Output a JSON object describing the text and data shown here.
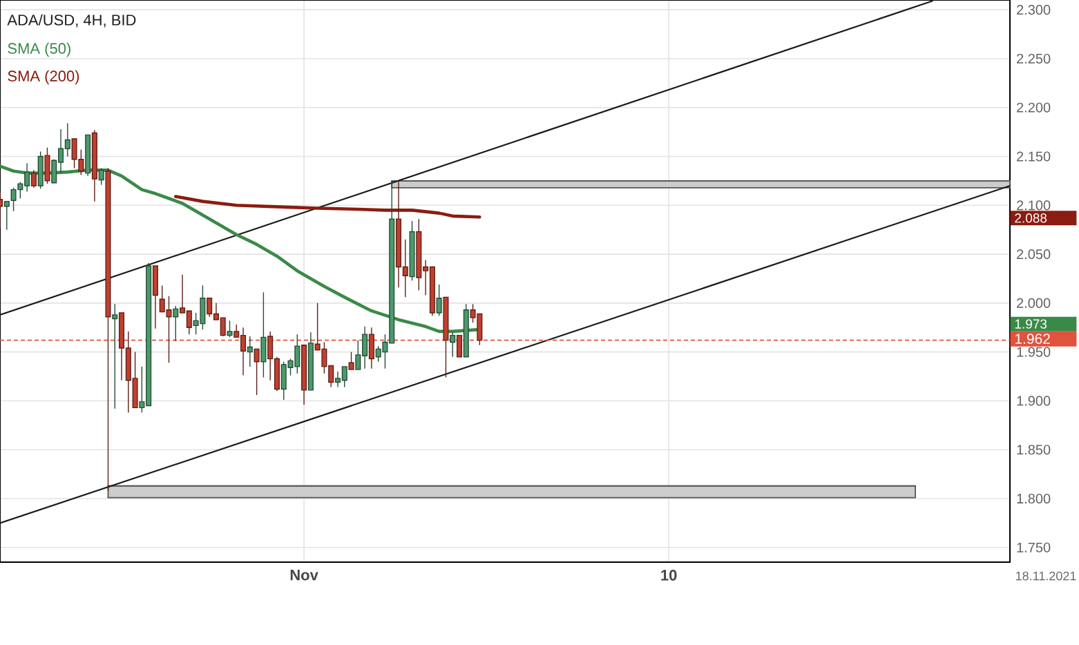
{
  "chart_data": {
    "type": "candlestick",
    "title": "ADA/USD, 4H, BID",
    "x": [
      "2021-10-24T12:00",
      "2021-10-24T16:00",
      "2021-10-24T20:00",
      "2021-10-25T00:00",
      "2021-10-25T04:00",
      "2021-10-25T08:00",
      "2021-10-25T12:00",
      "2021-10-25T16:00",
      "2021-10-25T20:00",
      "2021-10-26T00:00",
      "2021-10-26T04:00",
      "2021-10-26T08:00",
      "2021-10-26T12:00",
      "2021-10-26T16:00",
      "2021-10-26T20:00",
      "2021-10-27T00:00",
      "2021-10-27T04:00",
      "2021-10-27T08:00",
      "2021-10-27T12:00",
      "2021-10-27T16:00",
      "2021-10-27T20:00",
      "2021-10-28T00:00",
      "2021-10-28T04:00",
      "2021-10-28T08:00",
      "2021-10-28T12:00",
      "2021-10-28T16:00",
      "2021-10-28T20:00",
      "2021-10-29T00:00",
      "2021-10-29T04:00",
      "2021-10-29T08:00",
      "2021-10-29T12:00",
      "2021-10-29T16:00",
      "2021-10-29T20:00",
      "2021-10-30T00:00",
      "2021-10-30T04:00",
      "2021-10-30T08:00",
      "2021-10-30T12:00",
      "2021-10-30T16:00",
      "2021-10-30T20:00",
      "2021-10-31T00:00",
      "2021-10-31T04:00",
      "2021-10-31T08:00",
      "2021-10-31T12:00",
      "2021-10-31T16:00",
      "2021-10-31T20:00",
      "2021-11-01T00:00",
      "2021-11-01T04:00",
      "2021-11-01T08:00",
      "2021-11-01T12:00",
      "2021-11-01T16:00",
      "2021-11-01T20:00",
      "2021-11-02T00:00",
      "2021-11-02T04:00",
      "2021-11-02T08:00",
      "2021-11-02T12:00",
      "2021-11-02T16:00",
      "2021-11-02T20:00",
      "2021-11-03T00:00",
      "2021-11-03T04:00",
      "2021-11-03T08:00",
      "2021-11-03T12:00",
      "2021-11-03T16:00",
      "2021-11-03T20:00",
      "2021-11-04T00:00",
      "2021-11-04T04:00",
      "2021-11-04T08:00",
      "2021-11-04T12:00",
      "2021-11-04T16:00",
      "2021-11-04T20:00",
      "2021-11-05T00:00",
      "2021-11-05T04:00",
      "2021-11-05T08:00"
    ],
    "ohlc": [
      [
        2.106,
        2.114,
        2.077,
        2.099
      ],
      [
        2.099,
        2.104,
        2.075,
        2.104
      ],
      [
        2.105,
        2.118,
        2.094,
        2.116
      ],
      [
        2.116,
        2.124,
        2.107,
        2.122
      ],
      [
        2.12,
        2.143,
        2.114,
        2.134
      ],
      [
        2.133,
        2.136,
        2.118,
        2.12
      ],
      [
        2.12,
        2.155,
        2.117,
        2.15
      ],
      [
        2.151,
        2.159,
        2.122,
        2.125
      ],
      [
        2.123,
        2.147,
        2.123,
        2.146
      ],
      [
        2.144,
        2.178,
        2.133,
        2.158
      ],
      [
        2.158,
        2.184,
        2.15,
        2.167
      ],
      [
        2.168,
        2.168,
        2.138,
        2.147
      ],
      [
        2.147,
        2.157,
        2.131,
        2.135
      ],
      [
        2.133,
        2.172,
        2.13,
        2.172
      ],
      [
        2.174,
        2.177,
        2.104,
        2.127
      ],
      [
        2.126,
        2.138,
        2.121,
        2.136
      ],
      [
        2.135,
        2.138,
        1.808,
        1.986
      ],
      [
        1.984,
        1.999,
        1.892,
        1.988
      ],
      [
        1.99,
        1.99,
        1.921,
        1.954
      ],
      [
        1.954,
        1.971,
        1.888,
        1.921
      ],
      [
        1.923,
        1.95,
        1.893,
        1.893
      ],
      [
        1.893,
        1.935,
        1.888,
        1.899
      ],
      [
        1.895,
        2.041,
        1.895,
        2.038
      ],
      [
        2.038,
        2.038,
        1.974,
        2.008
      ],
      [
        2.004,
        2.018,
        1.991,
        1.991
      ],
      [
        1.993,
        2.007,
        1.939,
        1.986
      ],
      [
        1.986,
        1.997,
        1.961,
        1.994
      ],
      [
        1.995,
        2.029,
        1.99,
        1.99
      ],
      [
        1.992,
        1.992,
        1.968,
        1.975
      ],
      [
        1.977,
        1.99,
        1.968,
        1.982
      ],
      [
        1.979,
        2.018,
        1.973,
        2.005
      ],
      [
        2.005,
        2.005,
        1.986,
        1.989
      ],
      [
        1.989,
        2.0,
        1.983,
        1.983
      ],
      [
        1.985,
        1.985,
        1.966,
        1.967
      ],
      [
        1.967,
        1.982,
        1.965,
        1.971
      ],
      [
        1.971,
        1.978,
        1.965,
        1.965
      ],
      [
        1.967,
        1.975,
        1.926,
        1.951
      ],
      [
        1.95,
        1.966,
        1.935,
        1.955
      ],
      [
        1.953,
        1.953,
        1.906,
        1.94
      ],
      [
        1.94,
        2.011,
        1.924,
        1.965
      ],
      [
        1.966,
        1.971,
        1.921,
        1.943
      ],
      [
        1.943,
        1.945,
        1.91,
        1.912
      ],
      [
        1.912,
        1.94,
        1.901,
        1.937
      ],
      [
        1.934,
        1.943,
        1.926,
        1.941
      ],
      [
        1.935,
        1.968,
        1.928,
        1.956
      ],
      [
        1.957,
        1.957,
        1.896,
        1.911
      ],
      [
        1.911,
        1.97,
        1.911,
        1.959
      ],
      [
        1.958,
        2.0,
        1.952,
        1.952
      ],
      [
        1.953,
        1.96,
        1.928,
        1.935
      ],
      [
        1.936,
        1.936,
        1.914,
        1.919
      ],
      [
        1.919,
        1.93,
        1.914,
        1.923
      ],
      [
        1.921,
        1.935,
        1.914,
        1.935
      ],
      [
        1.939,
        1.95,
        1.932,
        1.932
      ],
      [
        1.932,
        1.962,
        1.932,
        1.947
      ],
      [
        1.946,
        1.976,
        1.933,
        1.968
      ],
      [
        1.968,
        1.975,
        1.933,
        1.943
      ],
      [
        1.945,
        1.956,
        1.94,
        1.953
      ],
      [
        1.95,
        1.968,
        1.933,
        1.96
      ],
      [
        1.959,
        2.125,
        1.959,
        2.086
      ],
      [
        2.086,
        2.124,
        2.016,
        2.037
      ],
      [
        2.037,
        2.065,
        2.006,
        2.028
      ],
      [
        2.027,
        2.084,
        2.023,
        2.073
      ],
      [
        2.073,
        2.086,
        2.013,
        2.026
      ],
      [
        2.037,
        2.044,
        2.008,
        2.033
      ],
      [
        2.037,
        2.037,
        1.987,
        1.99
      ],
      [
        1.99,
        2.019,
        1.987,
        2.005
      ],
      [
        2.006,
        2.006,
        1.924,
        1.962
      ],
      [
        1.96,
        1.97,
        1.945,
        1.967
      ],
      [
        1.967,
        1.967,
        1.945,
        1.945
      ],
      [
        1.945,
        1.999,
        1.945,
        1.993
      ],
      [
        1.993,
        1.999,
        1.98,
        1.985
      ],
      [
        1.989,
        1.989,
        1.957,
        1.962
      ]
    ],
    "colors": [
      "#c0402f",
      "#4c9a6c",
      "#4c9a6c",
      "#4c9a6c",
      "#4c9a6c",
      "#c0402f",
      "#4c9a6c",
      "#c0402f",
      "#4c9a6c",
      "#4c9a6c",
      "#4c9a6c",
      "#c0402f",
      "#c0402f",
      "#4c9a6c",
      "#c0402f",
      "#4c9a6c",
      "#c0402f",
      "#4c9a6c",
      "#c0402f",
      "#c0402f",
      "#c0402f",
      "#4c9a6c",
      "#4c9a6c",
      "#c0402f",
      "#c0402f",
      "#c0402f",
      "#4c9a6c",
      "#c0402f",
      "#c0402f",
      "#4c9a6c",
      "#4c9a6c",
      "#c0402f",
      "#c0402f",
      "#c0402f",
      "#4c9a6c",
      "#c0402f",
      "#c0402f",
      "#4c9a6c",
      "#c0402f",
      "#4c9a6c",
      "#c0402f",
      "#c0402f",
      "#4c9a6c",
      "#4c9a6c",
      "#4c9a6c",
      "#c0402f",
      "#4c9a6c",
      "#c0402f",
      "#c0402f",
      "#c0402f",
      "#4c9a6c",
      "#4c9a6c",
      "#c0402f",
      "#4c9a6c",
      "#4c9a6c",
      "#c0402f",
      "#4c9a6c",
      "#4c9a6c",
      "#4c9a6c",
      "#c0402f",
      "#c0402f",
      "#4c9a6c",
      "#c0402f",
      "#c0402f",
      "#c0402f",
      "#4c9a6c",
      "#c0402f",
      "#4c9a6c",
      "#c0402f",
      "#4c9a6c",
      "#c0402f",
      "#c0402f"
    ],
    "series": [
      {
        "type": "line",
        "color": "#555555",
        "x": [
          "2021-11-03T04:00",
          "2021-11-18T10:00"
        ],
        "values": [
          2.125,
          2.125
        ],
        "lower": [
          2.118,
          2.118
        ],
        "upper": [
          2.125,
          2.125
        ]
      },
      {
        "type": "line",
        "color": "#555555",
        "x": [
          "2021-10-27T04:00",
          "2021-11-16T02:00"
        ],
        "values": [
          1.813,
          1.813
        ],
        "lower": [
          1.801,
          1.801
        ],
        "upper": [
          1.813,
          1.813
        ]
      },
      {
        "type": "line",
        "color": "#1a1a1a",
        "x": [
          "2021-10-24T12:00",
          "2021-11-16T12:00"
        ],
        "values": [
          1.988,
          2.309
        ]
      },
      {
        "type": "line",
        "color": "#1a1a1a",
        "x": [
          "2021-10-24T12:00",
          "2021-11-18T10:00"
        ],
        "values": [
          1.775,
          2.12
        ]
      },
      {
        "type": "line",
        "name": "SMA (50)",
        "color": "#3a8a47",
        "x": [
          "2021-10-24T12:00",
          "2021-10-24T20:00",
          "2021-10-25T04:00",
          "2021-10-25T16:00",
          "2021-10-26T04:00",
          "2021-10-26T16:00",
          "2021-10-27T04:00",
          "2021-10-27T12:00",
          "2021-10-28T00:00",
          "2021-10-28T08:00",
          "2021-10-29T00:00",
          "2021-10-29T08:00",
          "2021-10-29T20:00",
          "2021-10-30T08:00",
          "2021-10-30T20:00",
          "2021-10-31T08:00",
          "2021-10-31T20:00",
          "2021-11-01T12:00",
          "2021-11-02T00:00",
          "2021-11-02T16:00",
          "2021-11-03T08:00",
          "2021-11-04T00:00",
          "2021-11-04T08:00",
          "2021-11-04T16:00",
          "2021-11-05T08:00"
        ],
        "values": [
          2.14,
          2.135,
          2.133,
          2.133,
          2.134,
          2.136,
          2.136,
          2.13,
          2.116,
          2.112,
          2.102,
          2.094,
          2.082,
          2.07,
          2.06,
          2.048,
          2.033,
          2.017,
          2.006,
          1.992,
          1.983,
          1.976,
          1.971,
          1.971,
          1.973
        ]
      },
      {
        "type": "line",
        "name": "SMA (200)",
        "color": "#8b1c10",
        "x": [
          "2021-10-28T20:00",
          "2021-10-29T12:00",
          "2021-10-30T08:00",
          "2021-10-31T16:00",
          "2021-11-01T08:00",
          "2021-11-02T08:00",
          "2021-11-03T00:00",
          "2021-11-03T16:00",
          "2021-11-04T08:00",
          "2021-11-04T16:00",
          "2021-11-05T08:00"
        ],
        "values": [
          2.109,
          2.104,
          2.1,
          2.098,
          2.097,
          2.096,
          2.095,
          2.095,
          2.092,
          2.089,
          2.088
        ]
      }
    ],
    "xlim": [
      "2021-10-24T12:00",
      "2021-11-18T10:00"
    ],
    "xticks": [
      {
        "value": "2021-11-01",
        "label": "Nov"
      },
      {
        "value": "2021-11-10",
        "label": "10"
      }
    ],
    "ylim": [
      1.735,
      2.31
    ],
    "yticks": [
      {
        "value": 1.75,
        "label": "1.750"
      },
      {
        "value": 1.8,
        "label": "1.800"
      },
      {
        "value": 1.85,
        "label": "1.850"
      },
      {
        "value": 1.9,
        "label": "1.900"
      },
      {
        "value": 1.95,
        "label": "1.950"
      },
      {
        "value": 2.0,
        "label": "2.000"
      },
      {
        "value": 2.05,
        "label": "2.050"
      },
      {
        "value": 2.1,
        "label": "2.100"
      },
      {
        "value": 2.15,
        "label": "2.150"
      },
      {
        "value": 2.2,
        "label": "2.200"
      },
      {
        "value": 2.25,
        "label": "2.250"
      },
      {
        "value": 2.3,
        "label": "2.300"
      }
    ],
    "grid": true,
    "legend": "top left",
    "ref_lines": [
      {
        "axis": "y",
        "value": 1.962,
        "label": "1.962",
        "color": "#e0533d",
        "line_style": "dashed"
      }
    ],
    "annotations": [
      "1.973",
      "2.088",
      "18.11.2021"
    ]
  }
}
